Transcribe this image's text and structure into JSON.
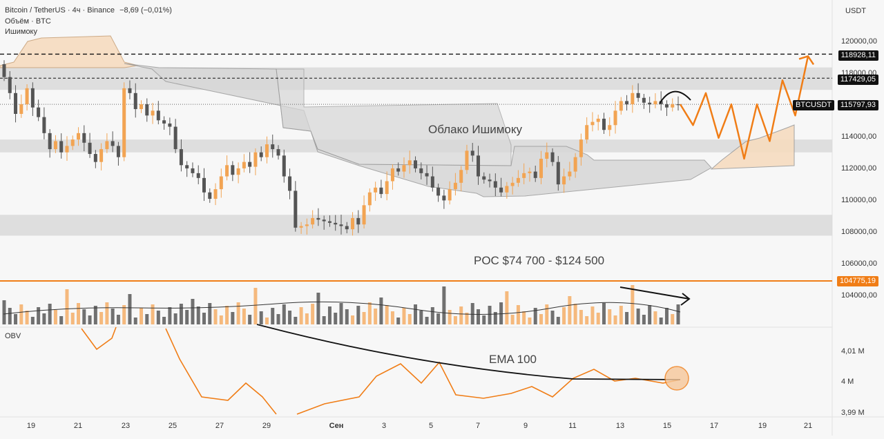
{
  "header": {
    "title_line": "Bitcoin / TetherUS · 4ч · Binance",
    "change": "−8,69 (−0,01%)",
    "volume_label": "Объём · BTC",
    "ichimoku_label": "Ишимоку"
  },
  "currency": "USDT",
  "obv_label": "OBV",
  "colors": {
    "up": "#f2a453",
    "down": "#555555",
    "accent": "#f07d16",
    "cloud_bull": "#f6dcc0",
    "cloud_bear": "#d7d7d7",
    "zone": "#d9d9d9"
  },
  "chart_data": {
    "type": "candlestick",
    "title": "Bitcoin / TetherUS · 4ч · Binance",
    "x_ticks": [
      "19",
      "21",
      "23",
      "25",
      "27",
      "29",
      "Сен",
      "3",
      "5",
      "7",
      "9",
      "11",
      "13",
      "15",
      "17",
      "19",
      "21"
    ],
    "price_axis": {
      "ticks": [
        "120000,00",
        "118000,00",
        "116000,00",
        "114000,00",
        "112000,00",
        "110000,00",
        "108000,00",
        "106000,00",
        "104000,00"
      ],
      "range": [
        103000,
        121500
      ]
    },
    "obv_axis": {
      "ticks": [
        "4,01 M",
        "4 M",
        "3,99 M"
      ]
    },
    "price_levels": [
      {
        "label": "118928,11",
        "value": 118928.11,
        "style": "dashed",
        "color": "#000000"
      },
      {
        "label": "117429,05",
        "value": 117429.05,
        "style": "dashed",
        "color": "#000000"
      },
      {
        "label": "BTCUSDT",
        "value": 115797.93,
        "display": "115797,93",
        "style": "dotted",
        "color": "#000000"
      },
      {
        "label": "104775,19",
        "value": 104775.19,
        "style": "solid",
        "color": "#f07d16"
      }
    ],
    "zones": [
      {
        "from": 116700,
        "to": 118100
      },
      {
        "from": 112800,
        "to": 113600
      },
      {
        "from": 107600,
        "to": 108900
      }
    ],
    "annotations": {
      "cloud": "Облако Ишимоку",
      "poc": "POC $74 700 - $124 500",
      "ema": "EMA 100"
    },
    "candles_close": [
      117500,
      116500,
      115200,
      115800,
      116800,
      115600,
      115000,
      114000,
      113000,
      113500,
      112800,
      113200,
      113600,
      114000,
      113400,
      112700,
      112200,
      113000,
      113500,
      113200,
      112500,
      116800,
      116500,
      115500,
      115800,
      115100,
      115400,
      114800,
      114600,
      114400,
      113000,
      112000,
      111800,
      111500,
      111200,
      110300,
      109900,
      110500,
      111300,
      112000,
      111400,
      111800,
      112200,
      111900,
      112800,
      112500,
      113300,
      113000,
      112600,
      111300,
      110400,
      108100,
      108200,
      108300,
      108700,
      108600,
      108500,
      108400,
      108300,
      108200,
      108000,
      108700,
      108300,
      109500,
      110300,
      110600,
      110200,
      111000,
      111800,
      111600,
      112000,
      112300,
      111800,
      111500,
      111300,
      110600,
      110100,
      109800,
      110500,
      110900,
      111700,
      112900,
      112600,
      111300,
      111100,
      111000,
      110600,
      110300,
      110700,
      110900,
      111200,
      111500,
      111600,
      111200,
      112400,
      112800,
      112200,
      110800,
      111300,
      111600,
      112500,
      113600,
      114500,
      114700,
      114900,
      114200,
      114500,
      115400,
      116000,
      115800,
      116500,
      116200,
      115900,
      115800,
      116000,
      115800,
      115600,
      115800,
      115798
    ],
    "projection_path": [
      [
        115800,
        0
      ],
      [
        114500,
        1
      ],
      [
        116500,
        2
      ],
      [
        113700,
        3
      ],
      [
        115800,
        4
      ],
      [
        112400,
        5
      ],
      [
        115800,
        6
      ],
      [
        113500,
        7
      ],
      [
        117300,
        8
      ],
      [
        115100,
        9
      ],
      [
        118800,
        10
      ]
    ],
    "volume_label": "Объём · BTC",
    "obv_label": "OBV"
  }
}
